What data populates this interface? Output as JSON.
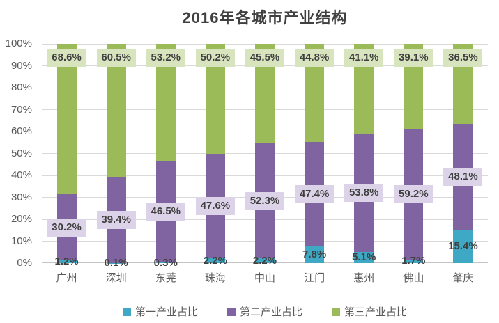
{
  "colors": {
    "primary": "#3FA8C4",
    "secondary": "#8064A2",
    "tertiary": "#9ABB58",
    "secondary_label_bg": "#DCD3E8",
    "tertiary_label_bg": "#D8E4BE",
    "gridline": "#D9D9D9",
    "axis_line": "#C4C4C4",
    "axis_text": "#595959",
    "title_text": "#404040",
    "data_label_text": "#3F3F3F",
    "background": "#FFFFFF"
  },
  "chart_data": {
    "type": "bar",
    "stacked": true,
    "title": "2016年各城市产业结构",
    "categories": [
      "广州",
      "深圳",
      "东莞",
      "珠海",
      "中山",
      "江门",
      "惠州",
      "佛山",
      "肇庆"
    ],
    "series": [
      {
        "name": "第一产业占比",
        "key": "primary",
        "values": [
          1.2,
          0.1,
          0.3,
          2.2,
          2.2,
          7.8,
          5.1,
          1.7,
          15.4
        ],
        "labels": [
          "1.2%",
          "0.1%",
          "0.3%",
          "2.2%",
          "2.2%",
          "7.8%",
          "5.1%",
          "1.7%",
          "15.4%"
        ]
      },
      {
        "name": "第二产业占比",
        "key": "secondary",
        "values": [
          30.2,
          39.4,
          46.5,
          47.6,
          52.3,
          47.4,
          53.8,
          59.2,
          48.1
        ],
        "labels": [
          "30.2%",
          "39.4%",
          "46.5%",
          "47.6%",
          "52.3%",
          "47.4%",
          "53.8%",
          "59.2%",
          "48.1%"
        ]
      },
      {
        "name": "第三产业占比",
        "key": "tertiary",
        "values": [
          68.6,
          60.5,
          53.2,
          50.2,
          45.5,
          44.8,
          41.1,
          39.1,
          36.5
        ],
        "labels": [
          "68.6%",
          "60.5%",
          "53.2%",
          "50.2%",
          "45.5%",
          "44.8%",
          "41.1%",
          "39.1%",
          "36.5%"
        ]
      }
    ],
    "y_axis": {
      "ticks": [
        "100%",
        "90%",
        "80%",
        "70%",
        "60%",
        "50%",
        "40%",
        "30%",
        "20%",
        "10%",
        "0%"
      ],
      "min": 0,
      "max": 100
    },
    "grid": true,
    "legend_position": "bottom",
    "legend": [
      "第一产业占比",
      "第二产业占比",
      "第三产业占比"
    ],
    "data_labels": true
  }
}
